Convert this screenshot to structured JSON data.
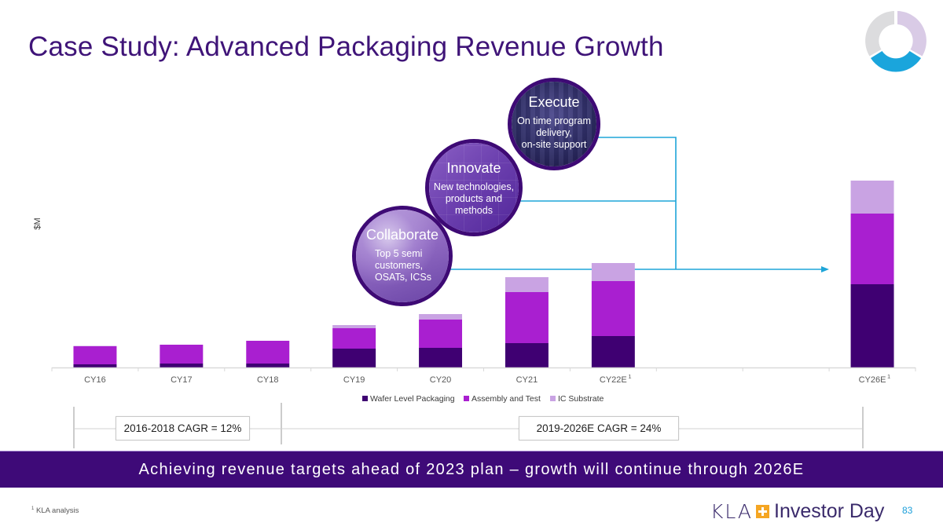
{
  "title": "Case Study: Advanced Packaging Revenue Growth",
  "circles": [
    {
      "heading": "Execute",
      "desc": [
        "On time program",
        "delivery,",
        "on-site support"
      ]
    },
    {
      "heading": "Innovate",
      "desc": [
        "New technologies,",
        "products and",
        "methods"
      ]
    },
    {
      "heading": "Collaborate",
      "desc": [
        "Top 5 semi",
        "customers,",
        "OSATs, ICSs"
      ]
    }
  ],
  "cagr": {
    "left": "2016-2018 CAGR = 12%",
    "right": "2019-2026E CAGR = 24%"
  },
  "banner": "Achieving revenue targets ahead of 2023 plan – growth will continue through 2026E",
  "footnote": {
    "marker": "1",
    "text": "KLA analysis"
  },
  "brand": {
    "company": "KLA",
    "event": "Investor Day"
  },
  "page_number": "83",
  "colors": {
    "wafer_level_packaging": "#3f0072",
    "assembly_and_test": "#a91fd0",
    "ic_substrate": "#c9a3e3",
    "connector_line": "#1ea5d8",
    "title": "#3f1478",
    "banner": "#3e0a78",
    "brand_accent": "#f5a623"
  },
  "chart_data": {
    "type": "bar",
    "stacked": true,
    "title": "",
    "xlabel": "",
    "ylabel": "$M",
    "units_note": "y-axis unlabeled; values are relative estimates",
    "categories": [
      "CY16",
      "CY17",
      "CY18",
      "CY19",
      "CY20",
      "CY21",
      "CY22E",
      "",
      "",
      "CY26E"
    ],
    "category_superscripts": [
      "",
      "",
      "",
      "",
      "",
      "",
      "1",
      "",
      "",
      "1"
    ],
    "series": [
      {
        "name": "Wafer Level Packaging",
        "values": [
          4,
          5,
          5,
          24,
          25,
          31,
          40,
          null,
          null,
          106
        ]
      },
      {
        "name": "Assembly and Test",
        "values": [
          23,
          24,
          29,
          26,
          36,
          65,
          70,
          null,
          null,
          90
        ]
      },
      {
        "name": "IC Substrate",
        "values": [
          0.5,
          0,
          0,
          4,
          7,
          19,
          23,
          null,
          null,
          42
        ]
      }
    ],
    "ylim": [
      0,
      240
    ],
    "grid": false,
    "legend": "bottom-center",
    "annotations": [
      "Execute",
      "Innovate",
      "Collaborate"
    ]
  },
  "corner_donut": {
    "segments": [
      1,
      1,
      1
    ]
  }
}
